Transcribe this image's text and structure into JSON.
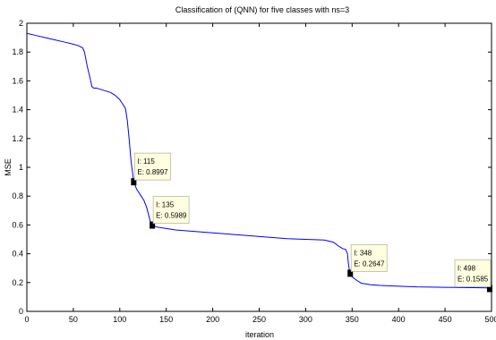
{
  "chart_data": {
    "type": "line",
    "title": "Classification of (QNN) for five classes with ns=3",
    "xlabel": "iteration",
    "ylabel": "MSE",
    "xlim": [
      0,
      500
    ],
    "ylim": [
      0,
      2
    ],
    "xticks": [
      "0",
      "50",
      "100",
      "150",
      "200",
      "250",
      "300",
      "350",
      "400",
      "450",
      "500"
    ],
    "yticks": [
      "0",
      "0.2",
      "0.4",
      "0.6",
      "0.8",
      "1",
      "1.2",
      "1.4",
      "1.6",
      "1.8",
      "2"
    ],
    "grid": false,
    "series": [
      {
        "color": "#0000ff",
        "x": [
          0,
          10,
          20,
          30,
          40,
          50,
          55,
          60,
          62,
          65,
          68,
          70,
          72,
          75,
          80,
          85,
          90,
          95,
          100,
          103,
          106,
          108,
          110,
          112,
          114,
          115,
          118,
          120,
          123,
          126,
          129,
          131,
          133,
          135,
          140,
          150,
          160,
          180,
          200,
          220,
          240,
          260,
          280,
          300,
          320,
          330,
          335,
          340,
          343,
          345,
          346,
          347,
          348,
          350,
          355,
          360,
          365,
          370,
          380,
          400,
          420,
          450,
          480,
          490,
          495,
          498,
          500
        ],
        "y": [
          1.93,
          1.915,
          1.9,
          1.885,
          1.87,
          1.855,
          1.845,
          1.83,
          1.8,
          1.7,
          1.62,
          1.56,
          1.55,
          1.55,
          1.54,
          1.53,
          1.52,
          1.5,
          1.47,
          1.44,
          1.41,
          1.33,
          1.2,
          1.05,
          0.95,
          0.8997,
          0.85,
          0.83,
          0.8,
          0.77,
          0.72,
          0.67,
          0.62,
          0.5989,
          0.585,
          0.575,
          0.565,
          0.555,
          0.545,
          0.535,
          0.525,
          0.515,
          0.505,
          0.5,
          0.495,
          0.48,
          0.455,
          0.435,
          0.43,
          0.4,
          0.33,
          0.29,
          0.2647,
          0.24,
          0.215,
          0.195,
          0.19,
          0.185,
          0.18,
          0.175,
          0.17,
          0.167,
          0.165,
          0.164,
          0.163,
          0.1585,
          0.16
        ]
      }
    ],
    "datatips": [
      {
        "x": 115,
        "y": 0.8997,
        "line1": "I: 115",
        "line2": "E: 0.8997"
      },
      {
        "x": 135,
        "y": 0.5989,
        "line1": "I: 135",
        "line2": "E: 0.5989"
      },
      {
        "x": 348,
        "y": 0.2647,
        "line1": "I: 348",
        "line2": "E: 0.2647"
      },
      {
        "x": 498,
        "y": 0.1585,
        "line1": "I: 498",
        "line2": "E: 0.1585"
      }
    ],
    "datatip_fill": "#ffffe0"
  }
}
